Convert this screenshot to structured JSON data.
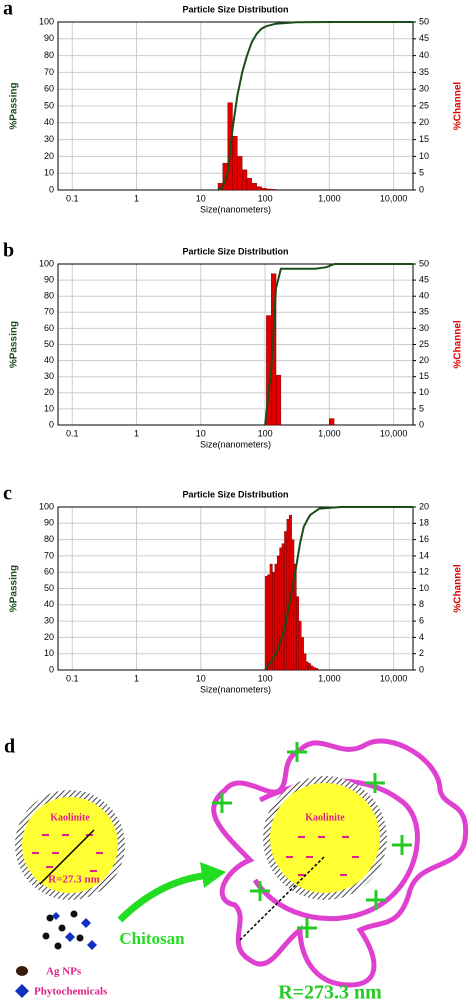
{
  "chart_data": [
    {
      "type": "histogram",
      "panel_label": "a",
      "title": "Particle Size Distribution",
      "xlabel": "Size(nanometers)",
      "ylabel": "%Passing",
      "y2label": "%Channel",
      "xlog": true,
      "grid": true,
      "xlim": [
        0.06,
        20000
      ],
      "xticks": [
        0.1,
        1,
        10,
        100,
        {
          "value": 1000,
          "label": "1,000"
        },
        {
          "value": 10000,
          "label": "10,000"
        }
      ],
      "ylim": [
        0,
        100
      ],
      "yticks": [
        0,
        10,
        20,
        30,
        40,
        50,
        60,
        70,
        80,
        90,
        100
      ],
      "y2lim": [
        0,
        50
      ],
      "y2ticks": [
        0,
        5,
        10,
        15,
        20,
        25,
        30,
        35,
        40,
        45,
        50
      ],
      "bar_color": "#e00000",
      "bins": [
        18.5,
        22,
        26.2,
        31.1,
        37,
        44,
        52.3,
        62.2,
        74,
        88,
        104.7,
        124.5,
        148
      ],
      "counts": [
        2,
        8,
        26,
        16,
        10,
        6,
        3.5,
        2,
        1,
        0.5,
        0.3,
        0.2
      ],
      "line": {
        "color": "#1a4d1a",
        "x": [
          18.5,
          22,
          26.2,
          31.1,
          37,
          44,
          52.3,
          62.2,
          74,
          88,
          104.7,
          148,
          300,
          1000,
          20000
        ],
        "values": [
          0,
          2,
          10,
          36,
          56,
          70,
          80,
          88,
          93,
          96,
          97.5,
          99,
          99.8,
          100,
          100
        ]
      }
    },
    {
      "type": "histogram",
      "panel_label": "b",
      "title": "Particle Size Distribution",
      "xlabel": "Size(nanometers)",
      "ylabel": "%Passing",
      "y2label": "%Channel",
      "xlog": true,
      "grid": true,
      "xlim": [
        0.06,
        20000
      ],
      "xticks": [
        0.1,
        1,
        10,
        100,
        {
          "value": 1000,
          "label": "1,000"
        },
        {
          "value": 10000,
          "label": "10,000"
        }
      ],
      "ylim": [
        0,
        100
      ],
      "yticks": [
        0,
        10,
        20,
        30,
        40,
        50,
        60,
        70,
        80,
        90,
        100
      ],
      "y2lim": [
        0,
        50
      ],
      "y2ticks": [
        0,
        5,
        10,
        15,
        20,
        25,
        30,
        35,
        40,
        45,
        50
      ],
      "bar_color": "#e00000",
      "bins": [
        104.7,
        124.5,
        148,
        176,
        209,
        249,
        296,
        352,
        419,
        498,
        592,
        704,
        837,
        996,
        1184
      ],
      "counts": [
        34,
        47,
        15.5,
        0,
        0,
        0,
        0,
        0,
        0,
        0,
        0,
        0,
        0,
        2
      ],
      "line": {
        "color": "#1a4d1a",
        "x": [
          100,
          125,
          148,
          176,
          250,
          600,
          900,
          1200,
          20000
        ],
        "values": [
          0,
          35,
          85,
          97,
          97,
          97,
          98,
          100,
          100
        ]
      }
    },
    {
      "type": "histogram",
      "panel_label": "c",
      "title": "Particle Size Distribution",
      "xlabel": "Size(nanometers)",
      "ylabel": "%Passing",
      "y2label": "%Channel",
      "xlog": true,
      "grid": true,
      "xlim": [
        0.06,
        20000
      ],
      "xticks": [
        0.1,
        1,
        10,
        100,
        {
          "value": 1000,
          "label": "1,000"
        },
        {
          "value": 10000,
          "label": "10,000"
        }
      ],
      "ylim": [
        0,
        100
      ],
      "yticks": [
        0,
        10,
        20,
        30,
        40,
        50,
        60,
        70,
        80,
        90,
        100
      ],
      "y2lim": [
        0,
        20
      ],
      "y2ticks": [
        0,
        2,
        4,
        6,
        8,
        10,
        12,
        14,
        16,
        18,
        20
      ],
      "bar_color": "#e00000",
      "bins": [
        100,
        109,
        119,
        130,
        141.5,
        154,
        168,
        183,
        200,
        218,
        237,
        259,
        282,
        307,
        335,
        365,
        398,
        434,
        473,
        515,
        562,
        612,
        667
      ],
      "counts": [
        11.5,
        11.7,
        13,
        12,
        13,
        14,
        15,
        15.5,
        17,
        18.5,
        19,
        16,
        13,
        9,
        6,
        4,
        2,
        1,
        0.8,
        0.5,
        0.3,
        0.2
      ],
      "line": {
        "color": "#1a4d1a",
        "x": [
          100,
          150,
          200,
          250,
          300,
          350,
          400,
          500,
          700,
          1500,
          20000
        ],
        "values": [
          0,
          10,
          25,
          45,
          62,
          78,
          88,
          95,
          99,
          100,
          100
        ]
      }
    }
  ],
  "diagram": {
    "panel_label": "d",
    "left_core": "Kaolinite",
    "left_radius": "R=27.3 nm",
    "right_core": "Kaolinite",
    "arrow_label": "Chitosan",
    "legend_ag": "Ag NPs",
    "legend_phyto": "Phytochemicals",
    "right_radius": "R=273.3 nm"
  }
}
